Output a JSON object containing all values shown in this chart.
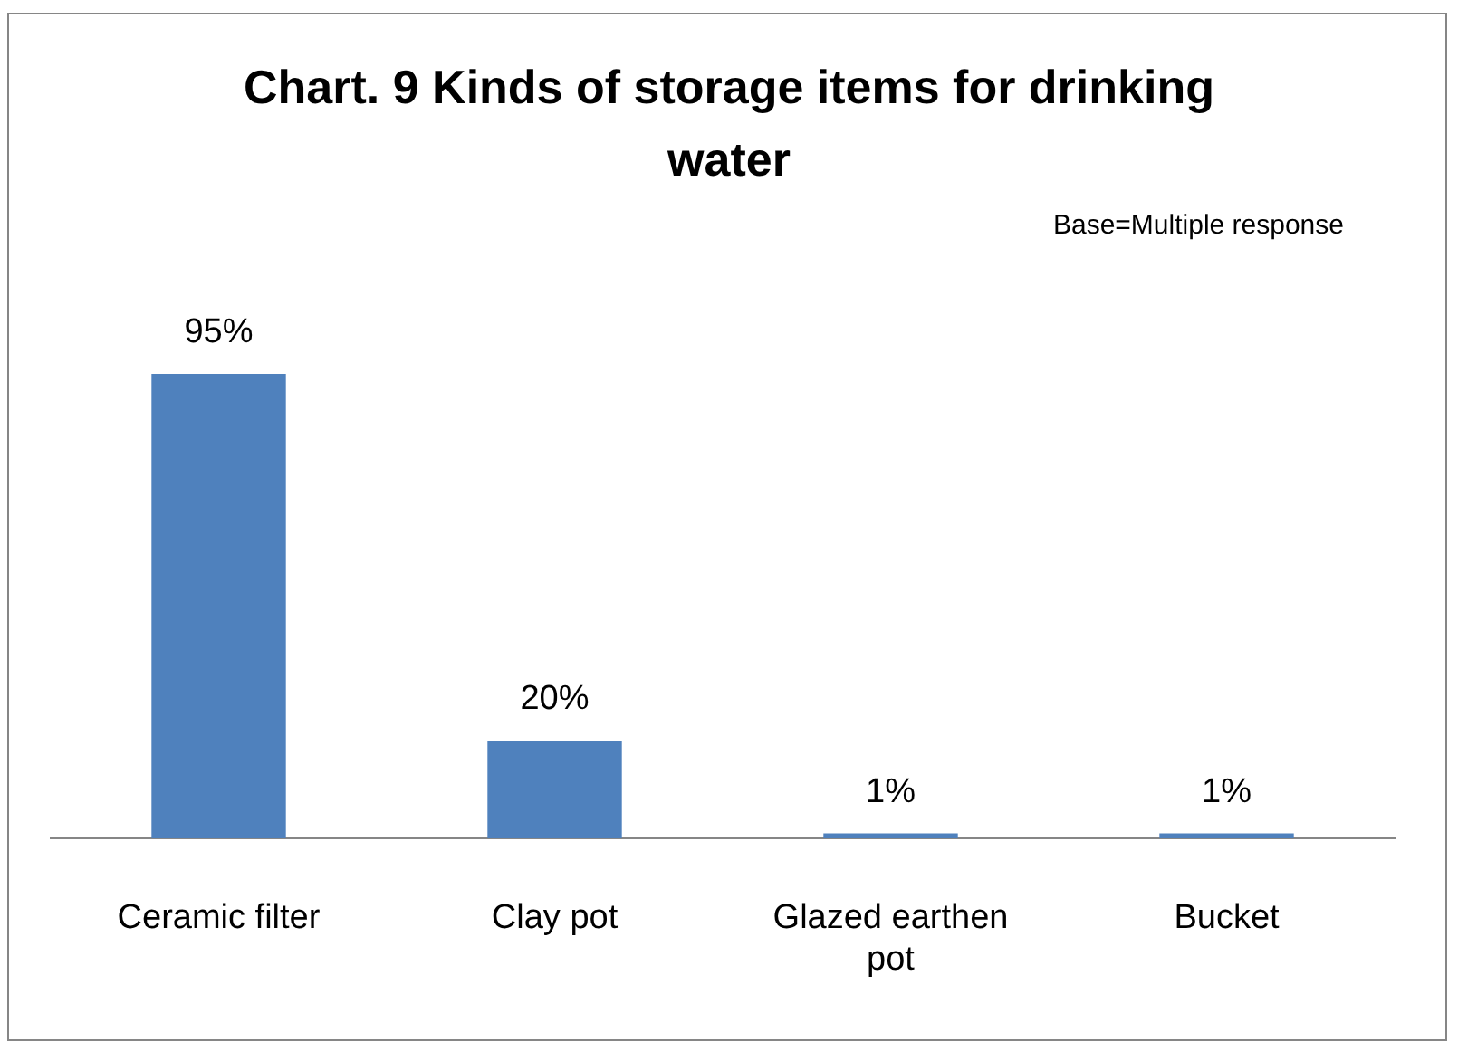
{
  "chart_data": {
    "type": "bar",
    "title": "Chart. 9 Kinds of storage items for drinking water",
    "annotations": [
      "Base=Multiple response"
    ],
    "categories": [
      "Ceramic filter",
      "Clay pot",
      "Glazed earthen pot",
      "Bucket"
    ],
    "values": [
      95,
      20,
      1,
      1
    ],
    "color": "#4f81bd",
    "value_labels": [
      "95%",
      "20%",
      "1%",
      "1%"
    ]
  }
}
